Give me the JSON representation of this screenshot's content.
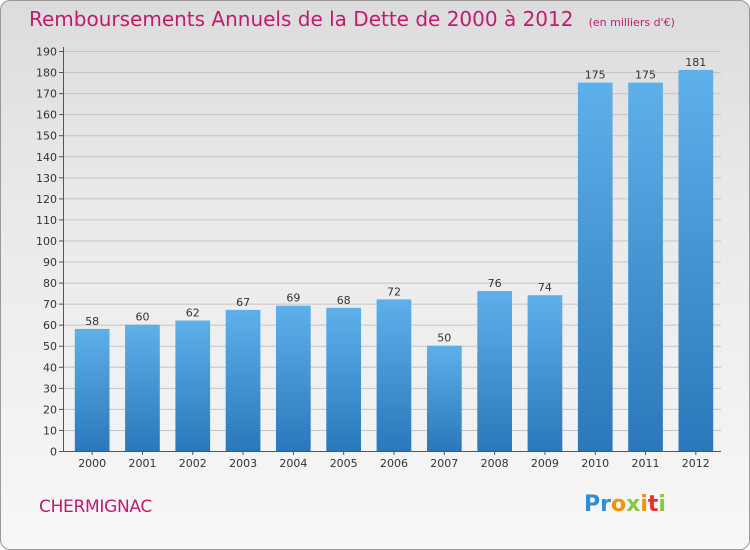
{
  "header": {
    "title": "Remboursements Annuels de la Dette de 2000 à 2012",
    "subtitle": "(en milliers d'€)"
  },
  "footer": {
    "commune": "CHERMIGNAC",
    "logo_text": "Proxiti"
  },
  "colors": {
    "title": "#c21a6f",
    "bar_top": "#5eb0ea",
    "bar_bottom": "#2a78bb",
    "grid": "#c4c4c4",
    "logo_letters": [
      "#2e8fd6",
      "#2e8fd6",
      "#f29400",
      "#8dc63f",
      "#f29400",
      "#e8312f",
      "#8dc63f"
    ]
  },
  "chart_data": {
    "type": "bar",
    "categories": [
      "2000",
      "2001",
      "2002",
      "2003",
      "2004",
      "2005",
      "2006",
      "2007",
      "2008",
      "2009",
      "2010",
      "2011",
      "2012"
    ],
    "values": [
      58,
      60,
      62,
      67,
      69,
      68,
      72,
      50,
      76,
      74,
      175,
      175,
      181
    ],
    "title": "Remboursements Annuels de la Dette de 2000 à 2012",
    "unit": "(en milliers d'€)",
    "ylim": [
      0,
      190
    ],
    "ytick_step": 10,
    "grid": true,
    "data_labels": true
  }
}
